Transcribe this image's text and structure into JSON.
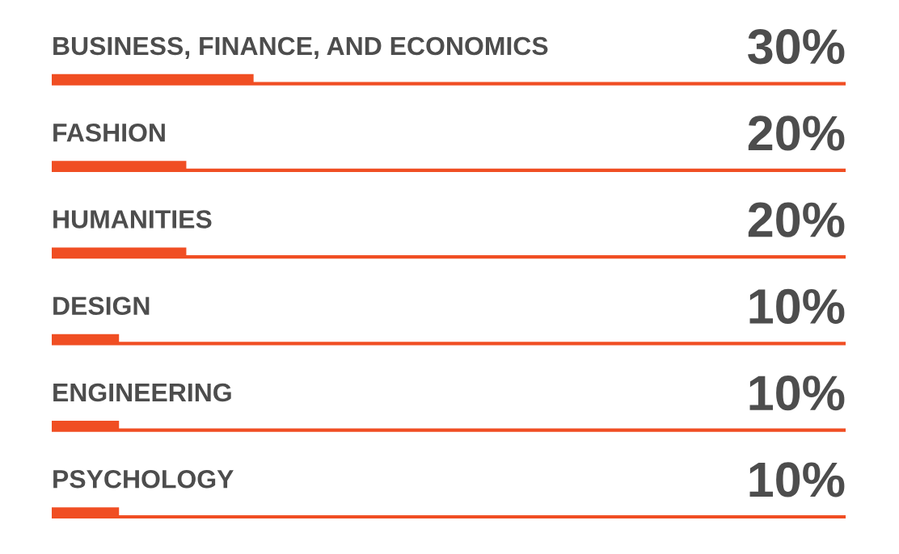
{
  "chart_data": {
    "type": "bar",
    "orientation": "horizontal",
    "categories": [
      "BUSINESS, FINANCE, AND ECONOMICS",
      "FASHION",
      "HUMANITIES",
      "DESIGN",
      "ENGINEERING",
      "PSYCHOLOGY"
    ],
    "values": [
      30,
      20,
      20,
      10,
      10,
      10
    ],
    "value_labels": [
      "30%",
      "20%",
      "20%",
      "10%",
      "10%",
      "10%"
    ],
    "color": "#f04e23",
    "xlim": [
      0,
      118
    ],
    "grid": "y",
    "tick_labels": false,
    "legend": false
  }
}
